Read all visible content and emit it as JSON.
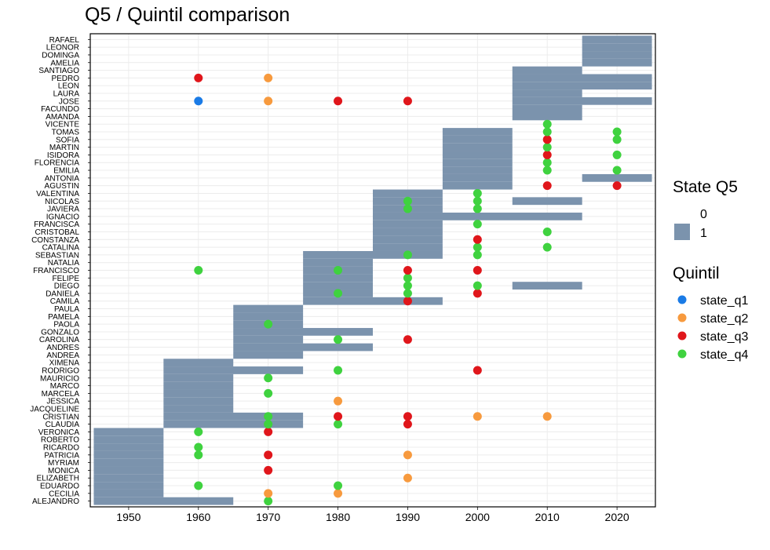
{
  "chart_data": {
    "type": "scatter",
    "title": "Q5 / Quintil comparison",
    "xlabel": "",
    "ylabel": "",
    "xlim": [
      1944.5,
      2025.5
    ],
    "x_ticks": [
      1950,
      1960,
      1970,
      1980,
      1990,
      2000,
      2010,
      2020
    ],
    "grid": true,
    "legend_position": "right",
    "categories": [
      "ALEJANDRO",
      "CECILIA",
      "EDUARDO",
      "ELIZABETH",
      "MONICA",
      "MYRIAM",
      "PATRICIA",
      "RICARDO",
      "ROBERTO",
      "VERONICA",
      "CLAUDIA",
      "CRISTIAN",
      "JACQUELINE",
      "JESSICA",
      "MARCELA",
      "MARCO",
      "MAURICIO",
      "RODRIGO",
      "XIMENA",
      "ANDREA",
      "ANDRES",
      "CAROLINA",
      "GONZALO",
      "PAOLA",
      "PAMELA",
      "PAULA",
      "CAMILA",
      "DANIELA",
      "DIEGO",
      "FELIPE",
      "FRANCISCO",
      "NATALIA",
      "SEBASTIAN",
      "CATALINA",
      "CONSTANZA",
      "CRISTOBAL",
      "FRANCISCA",
      "IGNACIO",
      "JAVIERA",
      "NICOLAS",
      "VALENTINA",
      "AGUSTIN",
      "ANTONIA",
      "EMILIA",
      "FLORENCIA",
      "ISIDORA",
      "MARTIN",
      "SOFIA",
      "TOMAS",
      "VICENTE",
      "AMANDA",
      "FACUNDO",
      "JOSE",
      "LAURA",
      "LEON",
      "PEDRO",
      "SANTIAGO",
      "AMELIA",
      "DOMINGA",
      "LEONOR",
      "RAFAEL"
    ],
    "q5_legend_title": "State Q5",
    "q5_legend": [
      {
        "label": "0",
        "color": null
      },
      {
        "label": "1",
        "color": "#7b93ad"
      }
    ],
    "quintil_legend_title": "Quintil",
    "quintil_legend": [
      {
        "label": "state_q1",
        "color": "#1a7be6"
      },
      {
        "label": "state_q2",
        "color": "#f79a3e"
      },
      {
        "label": "state_q3",
        "color": "#e0161b"
      },
      {
        "label": "state_q4",
        "color": "#3fd23f"
      }
    ],
    "q5_periods": [
      {
        "name": "ALEJANDRO",
        "from": 1945,
        "to": 1965
      },
      {
        "name": "CECILIA",
        "from": 1945,
        "to": 1955
      },
      {
        "name": "EDUARDO",
        "from": 1945,
        "to": 1955
      },
      {
        "name": "ELIZABETH",
        "from": 1945,
        "to": 1955
      },
      {
        "name": "MONICA",
        "from": 1945,
        "to": 1955
      },
      {
        "name": "MYRIAM",
        "from": 1945,
        "to": 1955
      },
      {
        "name": "PATRICIA",
        "from": 1945,
        "to": 1955
      },
      {
        "name": "RICARDO",
        "from": 1945,
        "to": 1955
      },
      {
        "name": "ROBERTO",
        "from": 1945,
        "to": 1955
      },
      {
        "name": "VERONICA",
        "from": 1945,
        "to": 1955
      },
      {
        "name": "CLAUDIA",
        "from": 1955,
        "to": 1975
      },
      {
        "name": "CRISTIAN",
        "from": 1955,
        "to": 1975
      },
      {
        "name": "JACQUELINE",
        "from": 1955,
        "to": 1965
      },
      {
        "name": "JESSICA",
        "from": 1955,
        "to": 1965
      },
      {
        "name": "MARCELA",
        "from": 1955,
        "to": 1965
      },
      {
        "name": "MARCO",
        "from": 1955,
        "to": 1965
      },
      {
        "name": "MAURICIO",
        "from": 1955,
        "to": 1965
      },
      {
        "name": "RODRIGO",
        "from": 1955,
        "to": 1975
      },
      {
        "name": "XIMENA",
        "from": 1955,
        "to": 1965
      },
      {
        "name": "ANDREA",
        "from": 1965,
        "to": 1975
      },
      {
        "name": "ANDRES",
        "from": 1965,
        "to": 1985
      },
      {
        "name": "CAROLINA",
        "from": 1965,
        "to": 1975
      },
      {
        "name": "GONZALO",
        "from": 1965,
        "to": 1985
      },
      {
        "name": "PAOLA",
        "from": 1965,
        "to": 1975
      },
      {
        "name": "PAMELA",
        "from": 1965,
        "to": 1975
      },
      {
        "name": "PAULA",
        "from": 1965,
        "to": 1975
      },
      {
        "name": "CAMILA",
        "from": 1975,
        "to": 1995
      },
      {
        "name": "DANIELA",
        "from": 1975,
        "to": 1985
      },
      {
        "name": "DIEGO",
        "from": 1975,
        "to": 1985
      },
      {
        "name": "DIEGO",
        "from": 2005,
        "to": 2015
      },
      {
        "name": "FELIPE",
        "from": 1975,
        "to": 1985
      },
      {
        "name": "FRANCISCO",
        "from": 1975,
        "to": 1985
      },
      {
        "name": "NATALIA",
        "from": 1975,
        "to": 1985
      },
      {
        "name": "SEBASTIAN",
        "from": 1975,
        "to": 1995
      },
      {
        "name": "CATALINA",
        "from": 1985,
        "to": 1995
      },
      {
        "name": "CONSTANZA",
        "from": 1985,
        "to": 1995
      },
      {
        "name": "CRISTOBAL",
        "from": 1985,
        "to": 1995
      },
      {
        "name": "FRANCISCA",
        "from": 1985,
        "to": 1995
      },
      {
        "name": "IGNACIO",
        "from": 1985,
        "to": 2015
      },
      {
        "name": "JAVIERA",
        "from": 1985,
        "to": 1995
      },
      {
        "name": "NICOLAS",
        "from": 1985,
        "to": 1995
      },
      {
        "name": "NICOLAS",
        "from": 2005,
        "to": 2015
      },
      {
        "name": "VALENTINA",
        "from": 1985,
        "to": 1995
      },
      {
        "name": "AGUSTIN",
        "from": 1995,
        "to": 2005
      },
      {
        "name": "ANTONIA",
        "from": 1995,
        "to": 2005
      },
      {
        "name": "ANTONIA",
        "from": 2015,
        "to": 2025
      },
      {
        "name": "EMILIA",
        "from": 1995,
        "to": 2005
      },
      {
        "name": "FLORENCIA",
        "from": 1995,
        "to": 2005
      },
      {
        "name": "ISIDORA",
        "from": 1995,
        "to": 2005
      },
      {
        "name": "MARTIN",
        "from": 1995,
        "to": 2005
      },
      {
        "name": "SOFIA",
        "from": 1995,
        "to": 2005
      },
      {
        "name": "TOMAS",
        "from": 1995,
        "to": 2005
      },
      {
        "name": "AMANDA",
        "from": 2005,
        "to": 2015
      },
      {
        "name": "FACUNDO",
        "from": 2005,
        "to": 2015
      },
      {
        "name": "JOSE",
        "from": 2005,
        "to": 2025
      },
      {
        "name": "LAURA",
        "from": 2005,
        "to": 2015
      },
      {
        "name": "LEON",
        "from": 2005,
        "to": 2025
      },
      {
        "name": "PEDRO",
        "from": 2005,
        "to": 2025
      },
      {
        "name": "SANTIAGO",
        "from": 2005,
        "to": 2015
      },
      {
        "name": "AMELIA",
        "from": 2015,
        "to": 2025
      },
      {
        "name": "DOMINGA",
        "from": 2015,
        "to": 2025
      },
      {
        "name": "LEONOR",
        "from": 2015,
        "to": 2025
      },
      {
        "name": "RAFAEL",
        "from": 2015,
        "to": 2025
      }
    ],
    "quintil_points": [
      {
        "name": "ALEJANDRO",
        "x": 1970,
        "state": "state_q4"
      },
      {
        "name": "CECILIA",
        "x": 1970,
        "state": "state_q2"
      },
      {
        "name": "CECILIA",
        "x": 1980,
        "state": "state_q2"
      },
      {
        "name": "EDUARDO",
        "x": 1960,
        "state": "state_q4"
      },
      {
        "name": "EDUARDO",
        "x": 1980,
        "state": "state_q4"
      },
      {
        "name": "ELIZABETH",
        "x": 1990,
        "state": "state_q2"
      },
      {
        "name": "MONICA",
        "x": 1970,
        "state": "state_q3"
      },
      {
        "name": "PATRICIA",
        "x": 1960,
        "state": "state_q4"
      },
      {
        "name": "PATRICIA",
        "x": 1970,
        "state": "state_q3"
      },
      {
        "name": "PATRICIA",
        "x": 1990,
        "state": "state_q2"
      },
      {
        "name": "RICARDO",
        "x": 1960,
        "state": "state_q4"
      },
      {
        "name": "VERONICA",
        "x": 1960,
        "state": "state_q4"
      },
      {
        "name": "VERONICA",
        "x": 1970,
        "state": "state_q3"
      },
      {
        "name": "CLAUDIA",
        "x": 1970,
        "state": "state_q4"
      },
      {
        "name": "CLAUDIA",
        "x": 1980,
        "state": "state_q4"
      },
      {
        "name": "CLAUDIA",
        "x": 1990,
        "state": "state_q3"
      },
      {
        "name": "CRISTIAN",
        "x": 1970,
        "state": "state_q4"
      },
      {
        "name": "CRISTIAN",
        "x": 1980,
        "state": "state_q3"
      },
      {
        "name": "CRISTIAN",
        "x": 1990,
        "state": "state_q3"
      },
      {
        "name": "CRISTIAN",
        "x": 2000,
        "state": "state_q2"
      },
      {
        "name": "CRISTIAN",
        "x": 2010,
        "state": "state_q2"
      },
      {
        "name": "JESSICA",
        "x": 1980,
        "state": "state_q2"
      },
      {
        "name": "MARCELA",
        "x": 1970,
        "state": "state_q4"
      },
      {
        "name": "MAURICIO",
        "x": 1970,
        "state": "state_q4"
      },
      {
        "name": "RODRIGO",
        "x": 1980,
        "state": "state_q4"
      },
      {
        "name": "RODRIGO",
        "x": 2000,
        "state": "state_q3"
      },
      {
        "name": "CAROLINA",
        "x": 1980,
        "state": "state_q4"
      },
      {
        "name": "CAROLINA",
        "x": 1990,
        "state": "state_q3"
      },
      {
        "name": "PAOLA",
        "x": 1970,
        "state": "state_q4"
      },
      {
        "name": "CAMILA",
        "x": 1990,
        "state": "state_q3"
      },
      {
        "name": "DANIELA",
        "x": 1980,
        "state": "state_q4"
      },
      {
        "name": "DANIELA",
        "x": 1990,
        "state": "state_q4"
      },
      {
        "name": "DANIELA",
        "x": 2000,
        "state": "state_q3"
      },
      {
        "name": "DIEGO",
        "x": 1990,
        "state": "state_q4"
      },
      {
        "name": "DIEGO",
        "x": 2000,
        "state": "state_q4"
      },
      {
        "name": "FELIPE",
        "x": 1990,
        "state": "state_q4"
      },
      {
        "name": "FRANCISCO",
        "x": 1960,
        "state": "state_q4"
      },
      {
        "name": "FRANCISCO",
        "x": 1980,
        "state": "state_q4"
      },
      {
        "name": "FRANCISCO",
        "x": 1990,
        "state": "state_q3"
      },
      {
        "name": "FRANCISCO",
        "x": 2000,
        "state": "state_q3"
      },
      {
        "name": "SEBASTIAN",
        "x": 1990,
        "state": "state_q4"
      },
      {
        "name": "SEBASTIAN",
        "x": 2000,
        "state": "state_q4"
      },
      {
        "name": "CATALINA",
        "x": 2000,
        "state": "state_q4"
      },
      {
        "name": "CATALINA",
        "x": 2010,
        "state": "state_q4"
      },
      {
        "name": "CONSTANZA",
        "x": 2000,
        "state": "state_q3"
      },
      {
        "name": "CRISTOBAL",
        "x": 2010,
        "state": "state_q4"
      },
      {
        "name": "FRANCISCA",
        "x": 2000,
        "state": "state_q4"
      },
      {
        "name": "JAVIERA",
        "x": 1990,
        "state": "state_q4"
      },
      {
        "name": "JAVIERA",
        "x": 2000,
        "state": "state_q4"
      },
      {
        "name": "NICOLAS",
        "x": 1990,
        "state": "state_q4"
      },
      {
        "name": "NICOLAS",
        "x": 2000,
        "state": "state_q4"
      },
      {
        "name": "VALENTINA",
        "x": 2000,
        "state": "state_q4"
      },
      {
        "name": "AGUSTIN",
        "x": 2010,
        "state": "state_q3"
      },
      {
        "name": "AGUSTIN",
        "x": 2020,
        "state": "state_q3"
      },
      {
        "name": "EMILIA",
        "x": 2010,
        "state": "state_q4"
      },
      {
        "name": "EMILIA",
        "x": 2020,
        "state": "state_q4"
      },
      {
        "name": "FLORENCIA",
        "x": 2010,
        "state": "state_q4"
      },
      {
        "name": "ISIDORA",
        "x": 2010,
        "state": "state_q3"
      },
      {
        "name": "ISIDORA",
        "x": 2020,
        "state": "state_q4"
      },
      {
        "name": "MARTIN",
        "x": 2010,
        "state": "state_q4"
      },
      {
        "name": "SOFIA",
        "x": 2010,
        "state": "state_q3"
      },
      {
        "name": "SOFIA",
        "x": 2020,
        "state": "state_q4"
      },
      {
        "name": "TOMAS",
        "x": 2010,
        "state": "state_q4"
      },
      {
        "name": "TOMAS",
        "x": 2020,
        "state": "state_q4"
      },
      {
        "name": "VICENTE",
        "x": 2010,
        "state": "state_q4"
      },
      {
        "name": "JOSE",
        "x": 1960,
        "state": "state_q1"
      },
      {
        "name": "JOSE",
        "x": 1970,
        "state": "state_q2"
      },
      {
        "name": "JOSE",
        "x": 1980,
        "state": "state_q3"
      },
      {
        "name": "JOSE",
        "x": 1990,
        "state": "state_q3"
      },
      {
        "name": "PEDRO",
        "x": 1960,
        "state": "state_q3"
      },
      {
        "name": "PEDRO",
        "x": 1970,
        "state": "state_q2"
      }
    ]
  }
}
